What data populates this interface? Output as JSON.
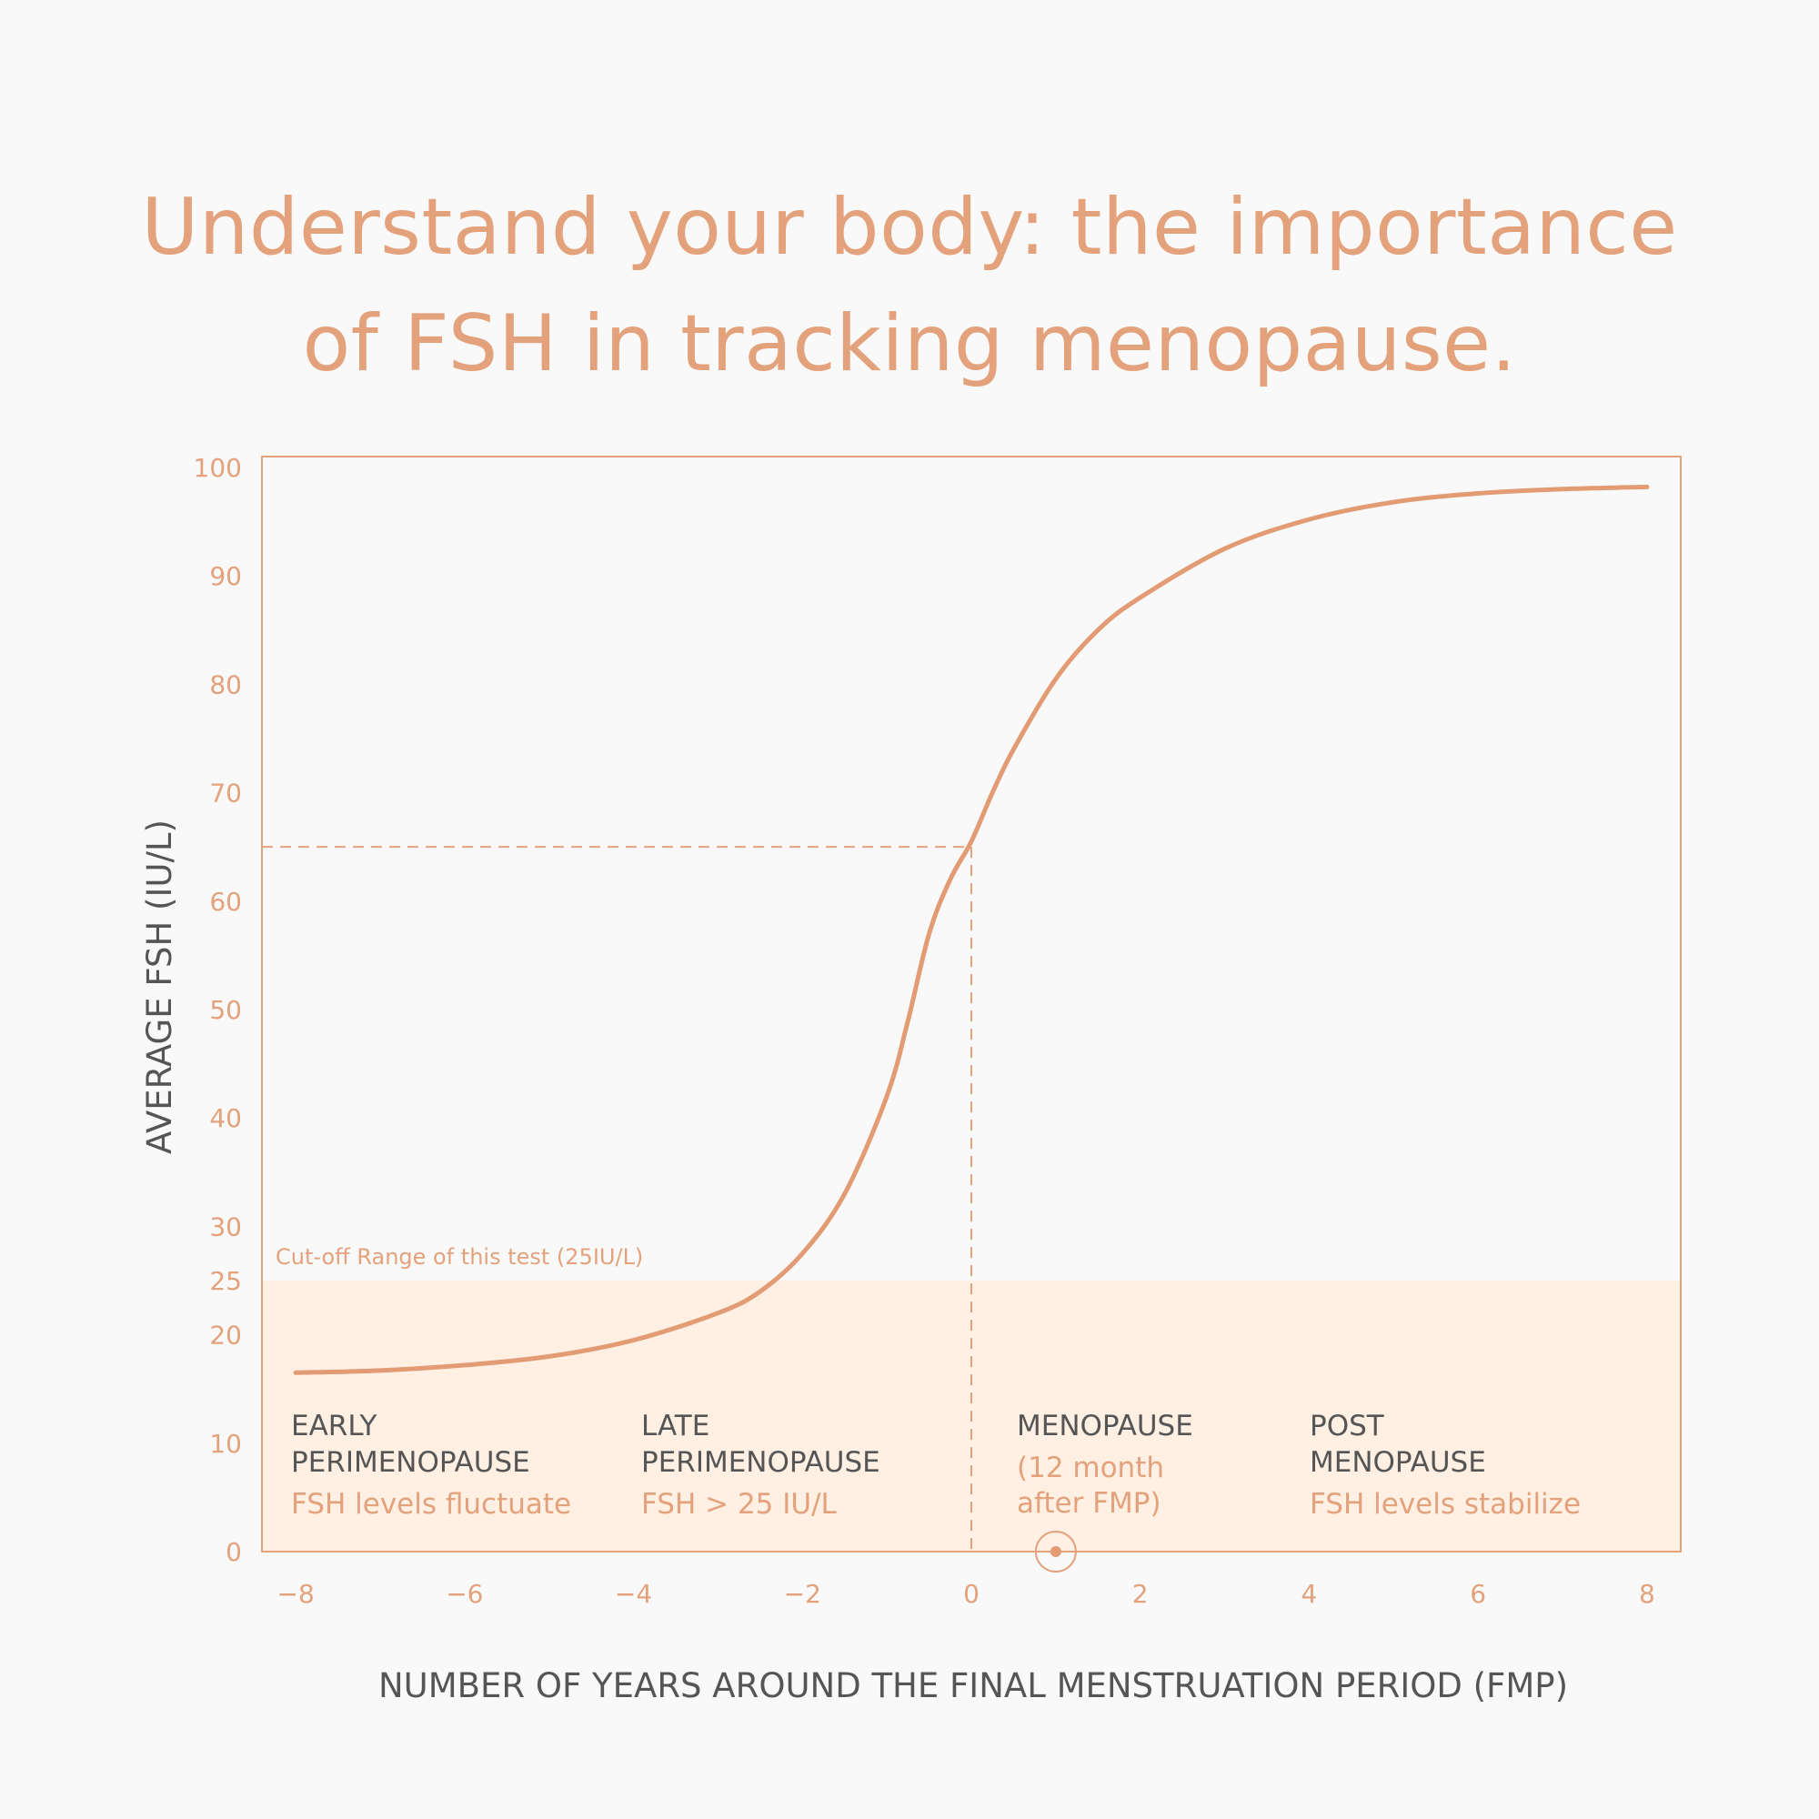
{
  "title": {
    "line1": "Understand your body: the importance",
    "line2": "of FSH in tracking menopause."
  },
  "colors": {
    "accent": "#e3a27b",
    "curve": "#e29b72",
    "band": "#fff0e3",
    "text_dark": "#555555",
    "background": "#f9f9f9"
  },
  "chart_data": {
    "type": "line",
    "xlabel": "NUMBER OF YEARS AROUND THE FINAL MENSTRUATION PERIOD (FMP)",
    "ylabel": "AVERAGE FSH (IU/L)",
    "xlim": [
      -8.4,
      8.4
    ],
    "ylim": [
      0,
      101
    ],
    "x_ticks": [
      {
        "value": -8,
        "label": "-8"
      },
      {
        "value": -6,
        "label": "-6"
      },
      {
        "value": -4,
        "label": "-4"
      },
      {
        "value": -2,
        "label": "-2"
      },
      {
        "value": 0,
        "label": "0"
      },
      {
        "value": 2,
        "label": "2"
      },
      {
        "value": 4,
        "label": "4"
      },
      {
        "value": 6,
        "label": "6"
      },
      {
        "value": 8,
        "label": "8"
      }
    ],
    "y_ticks": [
      {
        "value": 0,
        "label": "0"
      },
      {
        "value": 10,
        "label": "10"
      },
      {
        "value": 20,
        "label": "20"
      },
      {
        "value": 25,
        "label": "25"
      },
      {
        "value": 30,
        "label": "30"
      },
      {
        "value": 40,
        "label": "40"
      },
      {
        "value": 50,
        "label": "50"
      },
      {
        "value": 60,
        "label": "60"
      },
      {
        "value": 70,
        "label": "70"
      },
      {
        "value": 80,
        "label": "80"
      },
      {
        "value": 90,
        "label": "90"
      },
      {
        "value": 100,
        "label": "100"
      }
    ],
    "grid": false,
    "legend": "none",
    "cutoff": {
      "value": 25,
      "label": "Cut-off Range of this test (25IU/L)"
    },
    "reference_point": {
      "x": 0,
      "y": 65
    },
    "fmp_marker": {
      "x": 1,
      "y": 0
    },
    "series": [
      {
        "x": [
          -8,
          -7,
          -6,
          -5,
          -4,
          -3,
          -2.5,
          -2,
          -1.5,
          -1,
          -0.75,
          -0.5,
          -0.25,
          0,
          0.25,
          0.5,
          1,
          1.5,
          2,
          3,
          4,
          5,
          6,
          7,
          8
        ],
        "y": [
          16.5,
          16.7,
          17.2,
          18,
          19.5,
          22,
          24,
          27.5,
          33,
          42,
          49,
          57,
          62,
          65.5,
          70,
          74,
          80.5,
          85,
          88,
          92.5,
          95.2,
          96.8,
          97.6,
          98,
          98.2
        ]
      }
    ],
    "phases": [
      {
        "name_lines": [
          "EARLY",
          "PERIMENOPAUSE"
        ],
        "desc_lines": [
          "FSH levels fluctuate"
        ]
      },
      {
        "name_lines": [
          "LATE",
          "PERIMENOPAUSE"
        ],
        "desc_lines": [
          "FSH > 25 IU/L"
        ]
      },
      {
        "name_lines": [
          "MENOPAUSE"
        ],
        "desc_lines": [
          "(12 month",
          "after FMP)"
        ]
      },
      {
        "name_lines": [
          "POST",
          "MENOPAUSE"
        ],
        "desc_lines": [
          "FSH levels stabilize"
        ]
      }
    ]
  }
}
